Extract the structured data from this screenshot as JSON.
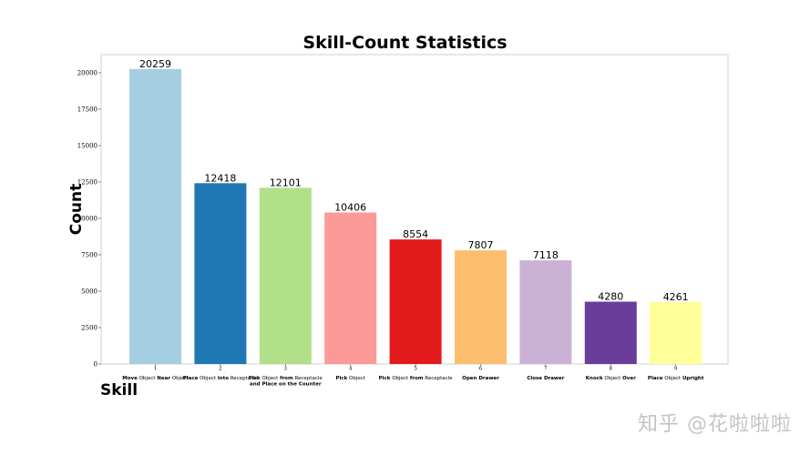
{
  "chart_data": {
    "type": "bar",
    "title": "Skill-Count Statistics",
    "xlabel": "Skill",
    "ylabel": "Count",
    "ylim": [
      0,
      21250
    ],
    "yticks": [
      0,
      2500,
      5000,
      7500,
      10000,
      12500,
      15000,
      17500,
      20000
    ],
    "grid": false,
    "categories": [
      {
        "num": "1",
        "lines": [
          [
            {
              "t": "Move",
              "b": true
            },
            {
              "t": " Object ",
              "b": false
            },
            {
              "t": "Near",
              "b": true
            },
            {
              "t": " Object",
              "b": false
            }
          ]
        ]
      },
      {
        "num": "2",
        "lines": [
          [
            {
              "t": "Place",
              "b": true
            },
            {
              "t": " Object ",
              "b": false
            },
            {
              "t": "into",
              "b": true
            },
            {
              "t": " Receptacle",
              "b": false
            }
          ]
        ]
      },
      {
        "num": "3",
        "lines": [
          [
            {
              "t": "Pick",
              "b": true
            },
            {
              "t": " Object ",
              "b": false
            },
            {
              "t": "from",
              "b": true
            },
            {
              "t": " Receptacle",
              "b": false
            }
          ],
          [
            {
              "t": "and Place on the Counter",
              "b": true
            }
          ]
        ]
      },
      {
        "num": "4",
        "lines": [
          [
            {
              "t": "Pick",
              "b": true
            },
            {
              "t": " Object",
              "b": false
            }
          ]
        ]
      },
      {
        "num": "5",
        "lines": [
          [
            {
              "t": "Pick",
              "b": true
            },
            {
              "t": " Object ",
              "b": false
            },
            {
              "t": "from",
              "b": true
            },
            {
              "t": " Receptacle",
              "b": false
            }
          ]
        ]
      },
      {
        "num": "6",
        "lines": [
          [
            {
              "t": "Open Drawer",
              "b": true
            }
          ]
        ]
      },
      {
        "num": "7",
        "lines": [
          [
            {
              "t": "Close Drawer",
              "b": true
            }
          ]
        ]
      },
      {
        "num": "8",
        "lines": [
          [
            {
              "t": "Knock",
              "b": true
            },
            {
              "t": " Object ",
              "b": false
            },
            {
              "t": "Over",
              "b": true
            }
          ]
        ]
      },
      {
        "num": "9",
        "lines": [
          [
            {
              "t": "Place",
              "b": true
            },
            {
              "t": " Object ",
              "b": false
            },
            {
              "t": "Upright",
              "b": true
            }
          ]
        ]
      }
    ],
    "values": [
      20259,
      12418,
      12101,
      10406,
      8554,
      7807,
      7118,
      4280,
      4261
    ],
    "colors": [
      "#a6cee3",
      "#1f78b4",
      "#b2df8a",
      "#fb9a99",
      "#e31a1c",
      "#fdbf6f",
      "#cab2d6",
      "#6a3d9a",
      "#ffff99"
    ]
  },
  "watermark": "知乎 @花啦啦啦"
}
